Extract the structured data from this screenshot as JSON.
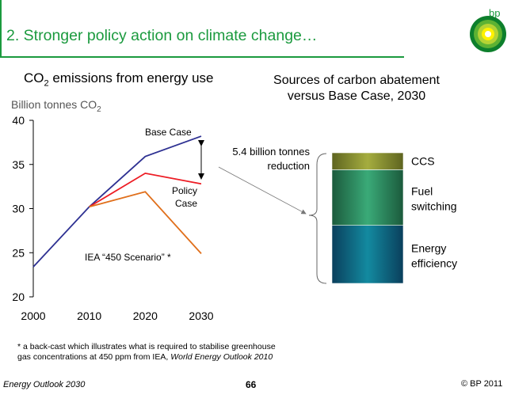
{
  "slide": {
    "title": "2. Stronger policy action on climate change…",
    "brand": "bp",
    "left_title_main": "CO",
    "left_title_sub": "2",
    "left_title_rest": " emissions from energy use",
    "units_main": "Billion tonnes CO",
    "units_sub": "2",
    "right_title_line1": "Sources of carbon abatement",
    "right_title_line2": "versus Base Case, 2030",
    "footnote_line1": "* a back-cast which illustrates what is required to stabilise greenhouse",
    "footnote_line2_plain": "gas concentrations at 450 ppm from IEA, ",
    "footnote_line2_italic": "World Energy Outlook 2010",
    "footer_left": "Energy Outlook 2030",
    "footer_page": "66",
    "footer_right": "© BP 2011"
  },
  "chart_data": [
    {
      "type": "line",
      "x": [
        2000,
        2010,
        2020,
        2030
      ],
      "ylim": [
        20,
        40
      ],
      "yticks": [
        20,
        25,
        30,
        35,
        40
      ],
      "xticks": [
        2000,
        2010,
        2020,
        2030
      ],
      "series": [
        {
          "name": "Base Case",
          "x": [
            2000,
            2010,
            2020,
            2030
          ],
          "values": [
            23.4,
            30.2,
            35.9,
            38.2
          ],
          "color": "#2e3192"
        },
        {
          "name": "Policy Case",
          "x": [
            2010,
            2020,
            2030
          ],
          "values": [
            30.2,
            34.0,
            32.8
          ],
          "color": "#ed1c24"
        },
        {
          "name": "IEA “450 Scenario” *",
          "x": [
            2010,
            2020,
            2030
          ],
          "values": [
            30.2,
            31.9,
            24.9
          ],
          "color": "#e06f1b"
        }
      ],
      "labels": {
        "base": "Base Case",
        "policy_line1": "Policy",
        "policy_line2": "Case",
        "iea": "IEA “450 Scenario” *",
        "reduction_line1": "5.4 billion tonnes",
        "reduction_line2": "reduction"
      }
    },
    {
      "type": "bar",
      "stacked": true,
      "total": 5.4,
      "segments": [
        {
          "name": "Energy efficiency",
          "label_line1": "Energy",
          "label_line2": "efficiency",
          "value": 2.4,
          "color": "#0e6b80"
        },
        {
          "name": "Fuel switching",
          "label_line1": "Fuel",
          "label_line2": "switching",
          "value": 2.3,
          "color": "#2f9a66"
        },
        {
          "name": "CCS",
          "label_line1": "CCS",
          "label_line2": "",
          "value": 0.7,
          "color": "#8e9a36"
        }
      ]
    }
  ]
}
